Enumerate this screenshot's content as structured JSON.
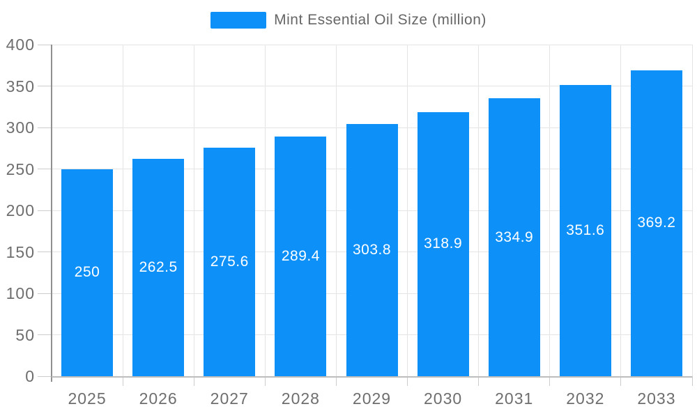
{
  "legend": {
    "label": "Mint Essential Oil Size (million)"
  },
  "chart_data": {
    "type": "bar",
    "title": "Mint Essential Oil Size (million)",
    "categories": [
      "2025",
      "2026",
      "2027",
      "2028",
      "2029",
      "2030",
      "2031",
      "2032",
      "2033"
    ],
    "series": [
      {
        "name": "Mint Essential Oil Size (million)",
        "values": [
          250,
          262.5,
          275.6,
          289.4,
          303.8,
          318.9,
          334.9,
          351.6,
          369.2
        ]
      }
    ],
    "xlabel": "",
    "ylabel": "",
    "ylim": [
      0,
      400
    ],
    "yticks": [
      0,
      50,
      100,
      150,
      200,
      250,
      300,
      350,
      400
    ],
    "grid": true,
    "legend_position": "top",
    "value_labels": "inside-middle",
    "colors": {
      "bar": "#0e90f9",
      "value_label": "#ffffff",
      "gridline": "#e4e4e4",
      "axis_line": "#909090",
      "tick_text": "#6e6e6e"
    }
  }
}
